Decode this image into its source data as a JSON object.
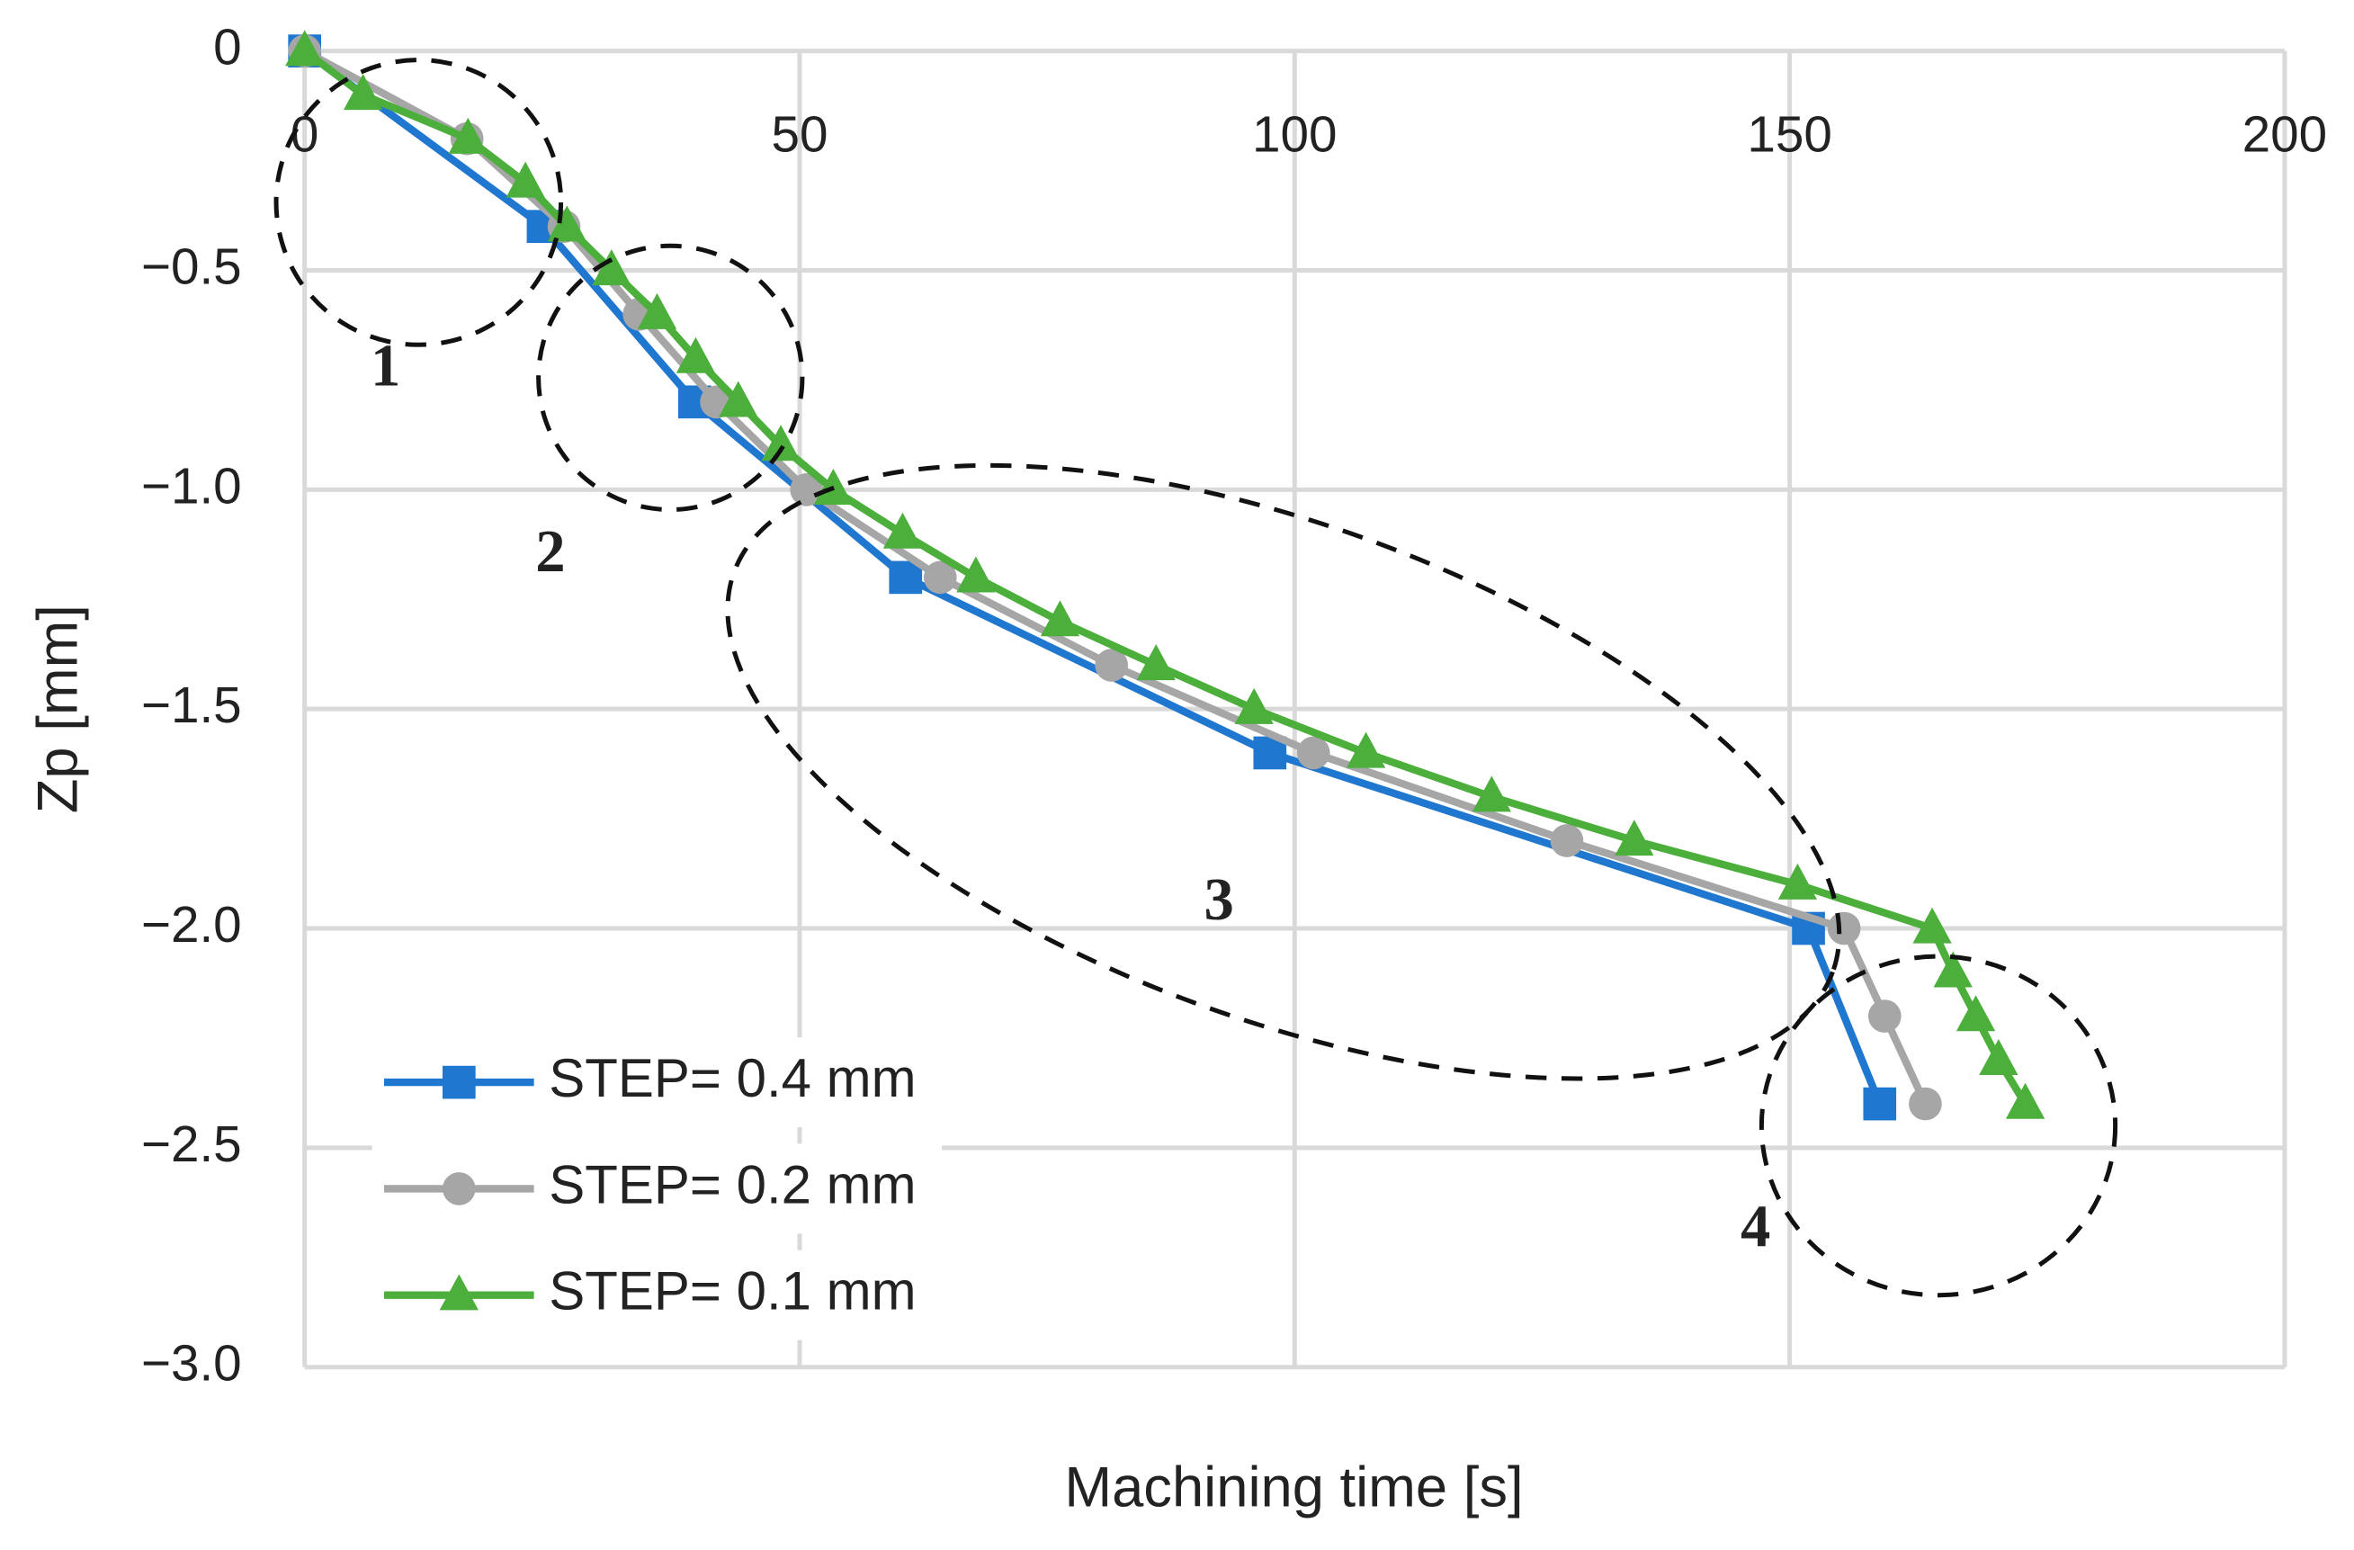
{
  "chart_data": {
    "type": "line",
    "xlabel": "Machining time [s]",
    "ylabel": "Zp [mm]",
    "xlim": [
      0,
      200
    ],
    "xticks": [
      0,
      50,
      100,
      150,
      200
    ],
    "ylim": [
      -3,
      0
    ],
    "yticks": [
      {
        "value": -3,
        "label": "−3.0"
      },
      {
        "value": -2.5,
        "label": "−2.5"
      },
      {
        "value": -2,
        "label": "−2.0"
      },
      {
        "value": -1.5,
        "label": "−1.5"
      },
      {
        "value": -1,
        "label": "−1.0"
      },
      {
        "value": -0.5,
        "label": "−0.5"
      },
      0
    ],
    "grid": true,
    "legend": "lower left",
    "annotations": [
      "1",
      "2",
      "3",
      "4"
    ],
    "series": [
      {
        "name": "STEP= 0.4 mm",
        "color": "#1f77d0",
        "marker": "square",
        "x": [
          0,
          24.1,
          39.4,
          60.7,
          97.5,
          151.9,
          159.1
        ],
        "values": [
          0,
          -0.4,
          -0.8,
          -1.2,
          -1.6,
          -2.0,
          -2.4
        ]
      },
      {
        "name": "STEP= 0.2 mm",
        "color": "#a6a6a6",
        "marker": "circle",
        "x": [
          0,
          16.4,
          26.2,
          33.8,
          41.6,
          50.7,
          64.2,
          81.5,
          101.9,
          127.5,
          155.5,
          159.6,
          163.7
        ],
        "values": [
          0,
          -0.2,
          -0.4,
          -0.6,
          -0.8,
          -1.0,
          -1.2,
          -1.4,
          -1.6,
          -1.8,
          -2.0,
          -2.2,
          -2.4
        ]
      },
      {
        "name": "STEP= 0.1 mm",
        "color": "#4caf3c",
        "marker": "triangle",
        "x": [
          0,
          5.9,
          16.5,
          22.3,
          26.5,
          31.0,
          35.6,
          39.5,
          43.8,
          48.1,
          53.4,
          60.4,
          67.8,
          76.3,
          86.0,
          95.9,
          107.2,
          119.9,
          134.3,
          150.8,
          164.4,
          166.5,
          168.8,
          171.1,
          173.8
        ],
        "values": [
          0,
          -0.1,
          -0.2,
          -0.3,
          -0.4,
          -0.5,
          -0.6,
          -0.7,
          -0.8,
          -0.9,
          -1.0,
          -1.1,
          -1.2,
          -1.3,
          -1.4,
          -1.5,
          -1.6,
          -1.7,
          -1.8,
          -1.9,
          -2.0,
          -2.1,
          -2.2,
          -2.3,
          -2.4
        ]
      }
    ]
  }
}
